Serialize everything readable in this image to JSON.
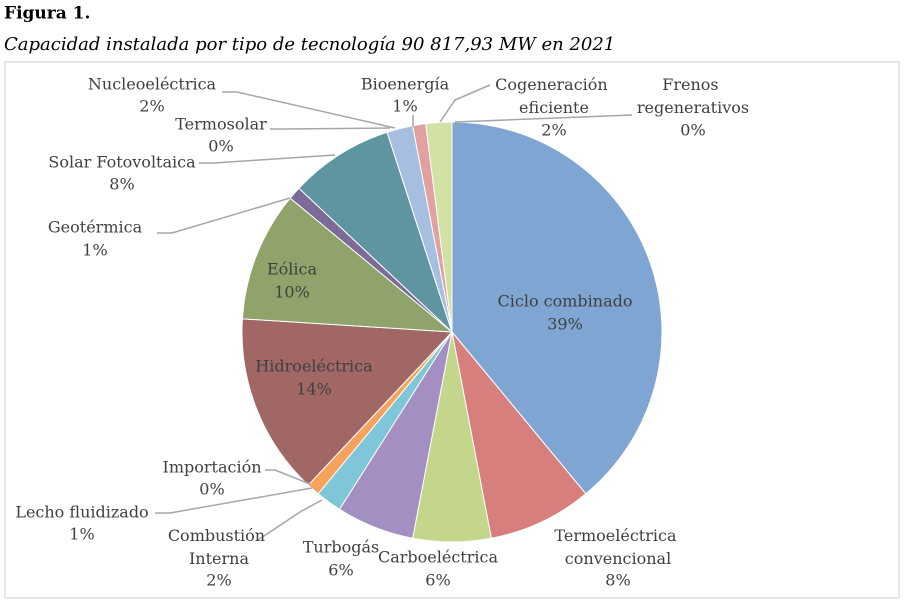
{
  "chart_data": {
    "type": "pie",
    "title": "Figura 1.",
    "subtitle": "Capacidad instalada por tipo de tecnología 90 817,93 MW en 2021",
    "categories": [
      "Ciclo combinado",
      "Termoeléctrica convencional",
      "Carboeléctrica",
      "Turbogás",
      "Combustión Interna",
      "Lecho fluidizado",
      "Importación",
      "Hidroeléctrica",
      "Eólica",
      "Geotérmica",
      "Solar Fotovoltaica",
      "Termosolar",
      "Nucleoeléctrica",
      "Bioenergía",
      "Cogeneración eficiente",
      "Frenos regenerativos"
    ],
    "values": [
      39,
      8,
      6,
      6,
      2,
      1,
      0,
      14,
      10,
      1,
      8,
      0,
      2,
      1,
      2,
      0
    ],
    "value_labels": [
      "39%",
      "8%",
      "6%",
      "6%",
      "2%",
      "1%",
      "0%",
      "14%",
      "10%",
      "1%",
      "8%",
      "0%",
      "2%",
      "1%",
      "2%",
      "0%"
    ],
    "colors": [
      "#7fa6d3",
      "#d67f7c",
      "#c3d68c",
      "#a38fc2",
      "#7ec6d8",
      "#f6a25c",
      "#9ab7dc",
      "#a06765",
      "#8fa36b",
      "#7b6b96",
      "#5f95a1",
      "#f2b38a",
      "#a6bfe0",
      "#e0a1a0",
      "#d2e1a4",
      "#b7a8cf"
    ]
  }
}
